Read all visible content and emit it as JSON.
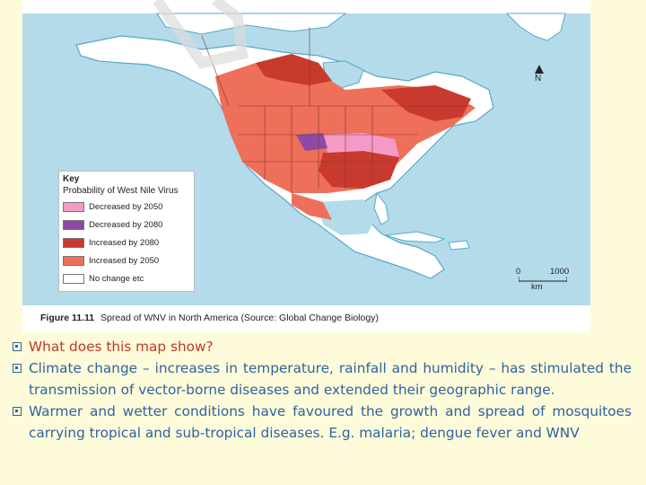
{
  "figure": {
    "number_label": "Figure 11.11",
    "caption": "Spread of WNV in North America (Source: Global Change Biology)"
  },
  "map": {
    "key_title": "Key",
    "key_subtitle": "Probability of West Nile Virus",
    "legend": [
      {
        "label": "Decreased by 2050",
        "color": "#f59ac6"
      },
      {
        "label": "Decreased by 2080",
        "color": "#8e4aa3"
      },
      {
        "label": "Increased by 2080",
        "color": "#c83a2e"
      },
      {
        "label": "Increased by 2050",
        "color": "#ee6f5a"
      },
      {
        "label": "No change etc",
        "color": "#ffffff"
      }
    ],
    "north_label": "N",
    "scale_zero": "0",
    "scale_max": "1000",
    "scale_unit": "km",
    "colors": {
      "sea": "#b3dbea",
      "land": "#ffffff",
      "coast": "#5aa7c6"
    }
  },
  "notes": [
    {
      "text": "What does this map show?"
    },
    {
      "text": "Climate change – increases in temperature, rainfall and humidity – has stimulated the transmission of vector-borne diseases and extended their geographic range."
    },
    {
      "text": "Warmer and wetter conditions have favoured the growth and spread of mosquitoes carrying tropical and sub-tropical diseases. E.g. malaria; dengue fever and WNV"
    }
  ]
}
